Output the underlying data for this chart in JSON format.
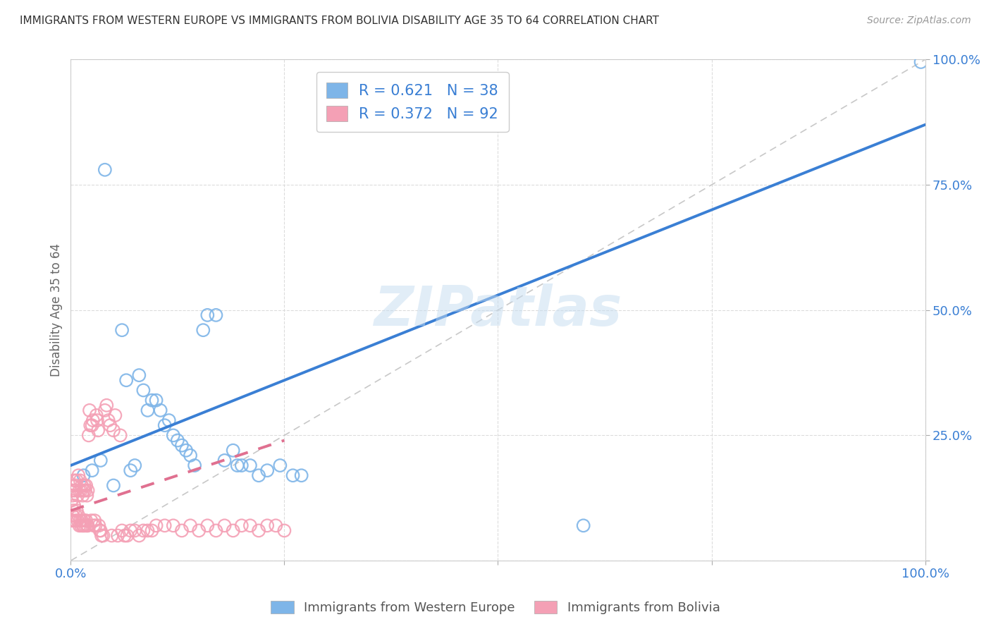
{
  "title": "IMMIGRANTS FROM WESTERN EUROPE VS IMMIGRANTS FROM BOLIVIA DISABILITY AGE 35 TO 64 CORRELATION CHART",
  "source": "Source: ZipAtlas.com",
  "ylabel": "Disability Age 35 to 64",
  "watermark": "ZIPatlas",
  "blue_R": 0.621,
  "blue_N": 38,
  "pink_R": 0.372,
  "pink_N": 92,
  "blue_color": "#7EB5E8",
  "pink_color": "#F4A0B5",
  "blue_line_color": "#3A7FD4",
  "pink_line_color": "#E07090",
  "diagonal_color": "#C8C8C8",
  "axis_label_color": "#3A7FD4",
  "title_color": "#333333",
  "background_color": "#FFFFFF",
  "legend_label_blue": "Immigrants from Western Europe",
  "legend_label_pink": "Immigrants from Bolivia",
  "xlim": [
    0,
    1
  ],
  "ylim": [
    0,
    1
  ],
  "blue_scatter_x": [
    0.015,
    0.025,
    0.035,
    0.05,
    0.06,
    0.065,
    0.07,
    0.075,
    0.08,
    0.085,
    0.09,
    0.095,
    0.1,
    0.105,
    0.11,
    0.115,
    0.12,
    0.125,
    0.13,
    0.135,
    0.14,
    0.145,
    0.155,
    0.16,
    0.17,
    0.18,
    0.19,
    0.195,
    0.2,
    0.21,
    0.22,
    0.23,
    0.245,
    0.26,
    0.27,
    0.6,
    0.995,
    0.04
  ],
  "blue_scatter_y": [
    0.17,
    0.18,
    0.2,
    0.15,
    0.46,
    0.36,
    0.18,
    0.19,
    0.37,
    0.34,
    0.3,
    0.32,
    0.32,
    0.3,
    0.27,
    0.28,
    0.25,
    0.24,
    0.23,
    0.22,
    0.21,
    0.19,
    0.46,
    0.49,
    0.49,
    0.2,
    0.22,
    0.19,
    0.19,
    0.19,
    0.17,
    0.18,
    0.19,
    0.17,
    0.17,
    0.07,
    0.995,
    0.78
  ],
  "pink_scatter_x": [
    0.001,
    0.001,
    0.002,
    0.002,
    0.002,
    0.003,
    0.003,
    0.004,
    0.004,
    0.005,
    0.005,
    0.006,
    0.006,
    0.007,
    0.007,
    0.008,
    0.008,
    0.009,
    0.009,
    0.01,
    0.01,
    0.011,
    0.011,
    0.012,
    0.012,
    0.013,
    0.013,
    0.014,
    0.014,
    0.015,
    0.015,
    0.016,
    0.016,
    0.017,
    0.017,
    0.018,
    0.018,
    0.019,
    0.019,
    0.02,
    0.02,
    0.021,
    0.022,
    0.023,
    0.024,
    0.025,
    0.026,
    0.027,
    0.028,
    0.029,
    0.03,
    0.031,
    0.032,
    0.033,
    0.034,
    0.035,
    0.036,
    0.038,
    0.04,
    0.042,
    0.044,
    0.046,
    0.048,
    0.05,
    0.052,
    0.055,
    0.058,
    0.06,
    0.063,
    0.066,
    0.07,
    0.075,
    0.08,
    0.085,
    0.09,
    0.095,
    0.1,
    0.11,
    0.12,
    0.13,
    0.14,
    0.15,
    0.16,
    0.17,
    0.18,
    0.19,
    0.2,
    0.21,
    0.22,
    0.23,
    0.24,
    0.25
  ],
  "pink_scatter_y": [
    0.08,
    0.12,
    0.09,
    0.13,
    0.15,
    0.1,
    0.14,
    0.11,
    0.16,
    0.08,
    0.14,
    0.09,
    0.15,
    0.1,
    0.16,
    0.08,
    0.13,
    0.09,
    0.17,
    0.07,
    0.14,
    0.08,
    0.16,
    0.07,
    0.14,
    0.08,
    0.15,
    0.07,
    0.13,
    0.07,
    0.14,
    0.08,
    0.15,
    0.07,
    0.14,
    0.08,
    0.15,
    0.07,
    0.13,
    0.07,
    0.14,
    0.25,
    0.3,
    0.27,
    0.08,
    0.27,
    0.28,
    0.07,
    0.08,
    0.07,
    0.29,
    0.28,
    0.26,
    0.07,
    0.06,
    0.06,
    0.05,
    0.05,
    0.3,
    0.31,
    0.28,
    0.27,
    0.05,
    0.26,
    0.29,
    0.05,
    0.25,
    0.06,
    0.05,
    0.05,
    0.06,
    0.06,
    0.05,
    0.06,
    0.06,
    0.06,
    0.07,
    0.07,
    0.07,
    0.06,
    0.07,
    0.06,
    0.07,
    0.06,
    0.07,
    0.06,
    0.07,
    0.07,
    0.06,
    0.07,
    0.07,
    0.06
  ],
  "blue_line_x0": 0.0,
  "blue_line_y0": 0.19,
  "blue_line_x1": 1.0,
  "blue_line_y1": 0.87,
  "pink_line_x0": 0.0,
  "pink_line_y0": 0.1,
  "pink_line_x1": 0.25,
  "pink_line_y1": 0.24,
  "grid_color": "#DCDCDC",
  "xtick_positions": [
    0.0,
    0.25,
    0.5,
    0.75,
    1.0
  ],
  "ytick_positions": [
    0.0,
    0.25,
    0.5,
    0.75,
    1.0
  ]
}
